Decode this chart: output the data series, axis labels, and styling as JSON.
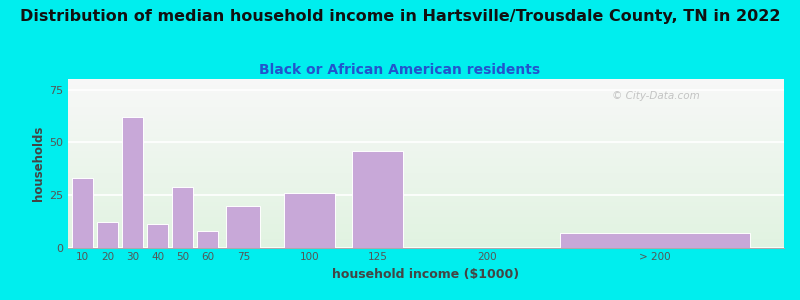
{
  "title": "Distribution of median household income in Hartsville/Trousdale County, TN in 2022",
  "subtitle": "Black or African American residents",
  "xlabel": "household income ($1000)",
  "ylabel": "households",
  "background_outer": "#00EEEE",
  "bar_color": "#C8A8D8",
  "bar_edge_color": "#ffffff",
  "title_fontsize": 11.5,
  "subtitle_fontsize": 10,
  "categories": [
    "10",
    "20",
    "30",
    "40",
    "50",
    "60",
    "75",
    "100",
    "125",
    "200",
    "> 200"
  ],
  "values": [
    33,
    12,
    62,
    11,
    29,
    8,
    20,
    26,
    46,
    0,
    7
  ],
  "ylim": [
    0,
    80
  ],
  "yticks": [
    0,
    25,
    50,
    75
  ],
  "watermark": "© City-Data.com"
}
